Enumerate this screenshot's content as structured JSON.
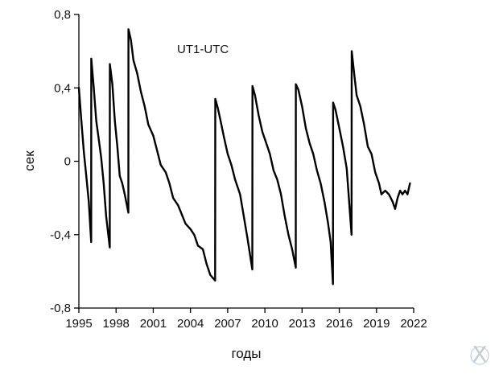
{
  "chart_data": {
    "type": "line",
    "title": "UT1-UTC",
    "xlabel": "годы",
    "ylabel": "сек",
    "xlim": [
      1995,
      2022
    ],
    "ylim": [
      -0.8,
      0.8
    ],
    "x_ticks": [
      1995,
      1998,
      2001,
      2004,
      2007,
      2010,
      2013,
      2016,
      2019,
      2022
    ],
    "y_ticks": [
      {
        "value": 0.8,
        "label": "0,8"
      },
      {
        "value": 0.4,
        "label": "0,4"
      },
      {
        "value": 0.0,
        "label": "0"
      },
      {
        "value": -0.4,
        "label": "-0,4"
      },
      {
        "value": -0.8,
        "label": "-0,8"
      }
    ],
    "grid": false,
    "series": [
      {
        "color": "#000000",
        "points": [
          [
            1995.0,
            0.4
          ],
          [
            1995.2,
            0.22
          ],
          [
            1995.4,
            0.05
          ],
          [
            1995.6,
            -0.08
          ],
          [
            1995.8,
            -0.22
          ],
          [
            1995.99,
            -0.44
          ],
          [
            1996.0,
            0.56
          ],
          [
            1996.2,
            0.4
          ],
          [
            1996.4,
            0.22
          ],
          [
            1996.6,
            0.12
          ],
          [
            1996.8,
            0.02
          ],
          [
            1997.0,
            -0.12
          ],
          [
            1997.2,
            -0.3
          ],
          [
            1997.49,
            -0.47
          ],
          [
            1997.5,
            0.53
          ],
          [
            1997.7,
            0.42
          ],
          [
            1997.9,
            0.22
          ],
          [
            1998.1,
            0.08
          ],
          [
            1998.3,
            -0.08
          ],
          [
            1998.5,
            -0.12
          ],
          [
            1998.7,
            -0.18
          ],
          [
            1998.99,
            -0.28
          ],
          [
            1999.0,
            0.72
          ],
          [
            1999.2,
            0.66
          ],
          [
            1999.4,
            0.55
          ],
          [
            1999.7,
            0.48
          ],
          [
            2000.0,
            0.38
          ],
          [
            2000.3,
            0.3
          ],
          [
            2000.6,
            0.2
          ],
          [
            2001.0,
            0.14
          ],
          [
            2001.3,
            0.06
          ],
          [
            2001.6,
            -0.02
          ],
          [
            2002.0,
            -0.06
          ],
          [
            2002.3,
            -0.12
          ],
          [
            2002.6,
            -0.2
          ],
          [
            2003.0,
            -0.24
          ],
          [
            2003.3,
            -0.29
          ],
          [
            2003.6,
            -0.34
          ],
          [
            2004.0,
            -0.37
          ],
          [
            2004.3,
            -0.4
          ],
          [
            2004.6,
            -0.46
          ],
          [
            2005.0,
            -0.48
          ],
          [
            2005.3,
            -0.56
          ],
          [
            2005.6,
            -0.62
          ],
          [
            2005.99,
            -0.65
          ],
          [
            2006.0,
            0.34
          ],
          [
            2006.2,
            0.29
          ],
          [
            2006.4,
            0.23
          ],
          [
            2006.7,
            0.13
          ],
          [
            2007.0,
            0.04
          ],
          [
            2007.3,
            -0.02
          ],
          [
            2007.6,
            -0.1
          ],
          [
            2008.0,
            -0.18
          ],
          [
            2008.3,
            -0.3
          ],
          [
            2008.6,
            -0.42
          ],
          [
            2008.99,
            -0.59
          ],
          [
            2009.0,
            0.41
          ],
          [
            2009.2,
            0.36
          ],
          [
            2009.5,
            0.25
          ],
          [
            2009.8,
            0.16
          ],
          [
            2010.1,
            0.1
          ],
          [
            2010.4,
            0.04
          ],
          [
            2010.7,
            -0.05
          ],
          [
            2011.0,
            -0.1
          ],
          [
            2011.3,
            -0.18
          ],
          [
            2011.6,
            -0.3
          ],
          [
            2011.9,
            -0.4
          ],
          [
            2012.2,
            -0.48
          ],
          [
            2012.49,
            -0.58
          ],
          [
            2012.5,
            0.42
          ],
          [
            2012.7,
            0.39
          ],
          [
            2013.0,
            0.3
          ],
          [
            2013.3,
            0.18
          ],
          [
            2013.6,
            0.1
          ],
          [
            2013.9,
            0.04
          ],
          [
            2014.2,
            -0.05
          ],
          [
            2014.5,
            -0.12
          ],
          [
            2014.8,
            -0.22
          ],
          [
            2015.1,
            -0.34
          ],
          [
            2015.3,
            -0.44
          ],
          [
            2015.49,
            -0.67
          ],
          [
            2015.5,
            0.32
          ],
          [
            2015.7,
            0.28
          ],
          [
            2016.0,
            0.18
          ],
          [
            2016.3,
            0.08
          ],
          [
            2016.6,
            -0.04
          ],
          [
            2016.99,
            -0.4
          ],
          [
            2017.0,
            0.6
          ],
          [
            2017.2,
            0.48
          ],
          [
            2017.4,
            0.36
          ],
          [
            2017.7,
            0.3
          ],
          [
            2018.0,
            0.2
          ],
          [
            2018.3,
            0.08
          ],
          [
            2018.6,
            0.04
          ],
          [
            2018.9,
            -0.06
          ],
          [
            2019.2,
            -0.12
          ],
          [
            2019.4,
            -0.18
          ],
          [
            2019.7,
            -0.16
          ],
          [
            2020.0,
            -0.18
          ],
          [
            2020.3,
            -0.22
          ],
          [
            2020.5,
            -0.26
          ],
          [
            2020.7,
            -0.2
          ],
          [
            2020.9,
            -0.16
          ],
          [
            2021.1,
            -0.18
          ],
          [
            2021.3,
            -0.16
          ],
          [
            2021.5,
            -0.18
          ],
          [
            2021.7,
            -0.12
          ]
        ]
      }
    ]
  },
  "watermark": "X"
}
